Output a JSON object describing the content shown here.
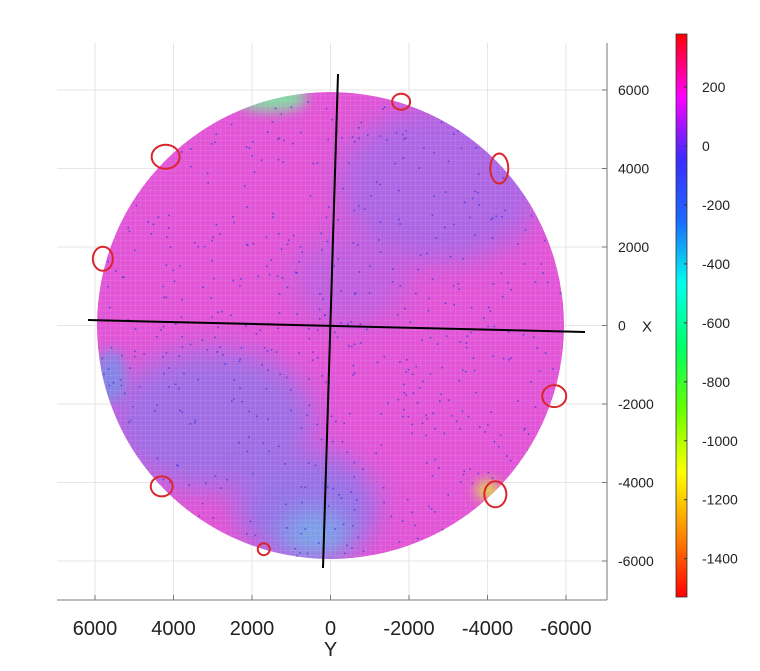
{
  "chart_data": {
    "type": "heatmap",
    "title": "",
    "xlabel": "X",
    "ylabel": "Y",
    "x_axis_side": "right",
    "y_axis_side": "bottom",
    "bottom_axis_ticks": [
      "6000",
      "4000",
      "2000",
      "0",
      "-2000",
      "-4000",
      "-6000"
    ],
    "bottom_axis_values": [
      6000,
      4000,
      2000,
      0,
      -2000,
      -4000,
      -6000
    ],
    "right_axis_ticks": [
      "6000",
      "4000",
      "2000",
      "0",
      "-2000",
      "-4000",
      "-6000"
    ],
    "right_axis_values": [
      6000,
      4000,
      2000,
      0,
      -2000,
      -4000,
      -6000
    ],
    "bottom_axis_range": [
      7000,
      -7000
    ],
    "right_axis_range": [
      -7000,
      7000
    ],
    "grid": true,
    "wafer_radius": 5950,
    "colorbar": {
      "ticks": [
        "200",
        "0",
        "-200",
        "-400",
        "-600",
        "-800",
        "-1000",
        "-1200",
        "-1400"
      ],
      "tick_values": [
        200,
        0,
        -200,
        -400,
        -600,
        -800,
        -1000,
        -1200,
        -1400
      ],
      "range": [
        -1530,
        380
      ],
      "colormap": [
        "#ff0000",
        "#ff8800",
        "#ffff00",
        "#66ff00",
        "#00ff66",
        "#00ffee",
        "#1a6cff",
        "#3b2bff",
        "#ff00ff",
        "#ff0000"
      ]
    },
    "regions": [
      {
        "label": "base",
        "value": 10,
        "color": "#e155d6"
      },
      {
        "label": "upper-right low region",
        "value": -120,
        "color": "#9b6ce8"
      },
      {
        "label": "lower-left low region",
        "value": -160,
        "color": "#9075e8"
      },
      {
        "label": "left-edge low region",
        "value": -300,
        "color": "#6f8fe8"
      },
      {
        "label": "bottom low region",
        "value": -450,
        "color": "#6fb8e8"
      },
      {
        "label": "top hotspot",
        "value": -900,
        "color": "#7fe0a0"
      },
      {
        "label": "lower-right hotspot",
        "value": -1250,
        "color": "#e0e040"
      }
    ],
    "highlighted_edge_points": [
      {
        "x": -1800,
        "y": 5700
      },
      {
        "x": 4200,
        "y": 4300
      },
      {
        "x": -4300,
        "y": 4000
      },
      {
        "x": 5800,
        "y": 1700
      },
      {
        "x": -5700,
        "y": -1800
      },
      {
        "x": 4300,
        "y": -4100
      },
      {
        "x": -4200,
        "y": -4300
      },
      {
        "x": 1700,
        "y": -5700
      }
    ],
    "annotation_color": "#d9262c",
    "crosshair_color": "#000000"
  }
}
